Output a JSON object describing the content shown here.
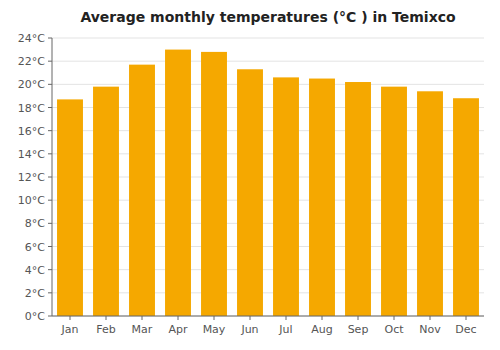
{
  "chart_data": {
    "type": "bar",
    "title": "Average monthly temperatures (°C ) in Temixco",
    "categories": [
      "Jan",
      "Feb",
      "Mar",
      "Apr",
      "May",
      "Jun",
      "Jul",
      "Aug",
      "Sep",
      "Oct",
      "Nov",
      "Dec"
    ],
    "values": [
      18.7,
      19.8,
      21.7,
      23.0,
      22.8,
      21.3,
      20.6,
      20.5,
      20.2,
      19.8,
      19.4,
      18.8
    ],
    "color": "#F5A800",
    "ylim": [
      0,
      24
    ],
    "yticks": [
      {
        "value": 0,
        "label": "0°C"
      },
      {
        "value": 2,
        "label": "2°C"
      },
      {
        "value": 4,
        "label": "4°C"
      },
      {
        "value": 6,
        "label": "6°C"
      },
      {
        "value": 8,
        "label": "8°C"
      },
      {
        "value": 10,
        "label": "10°C"
      },
      {
        "value": 12,
        "label": "12°C"
      },
      {
        "value": 14,
        "label": "14°C"
      },
      {
        "value": 16,
        "label": "16°C"
      },
      {
        "value": 18,
        "label": "18°C"
      },
      {
        "value": 20,
        "label": "20°C"
      },
      {
        "value": 22,
        "label": "22°C"
      },
      {
        "value": 24,
        "label": "24°C"
      }
    ],
    "grid": true
  }
}
